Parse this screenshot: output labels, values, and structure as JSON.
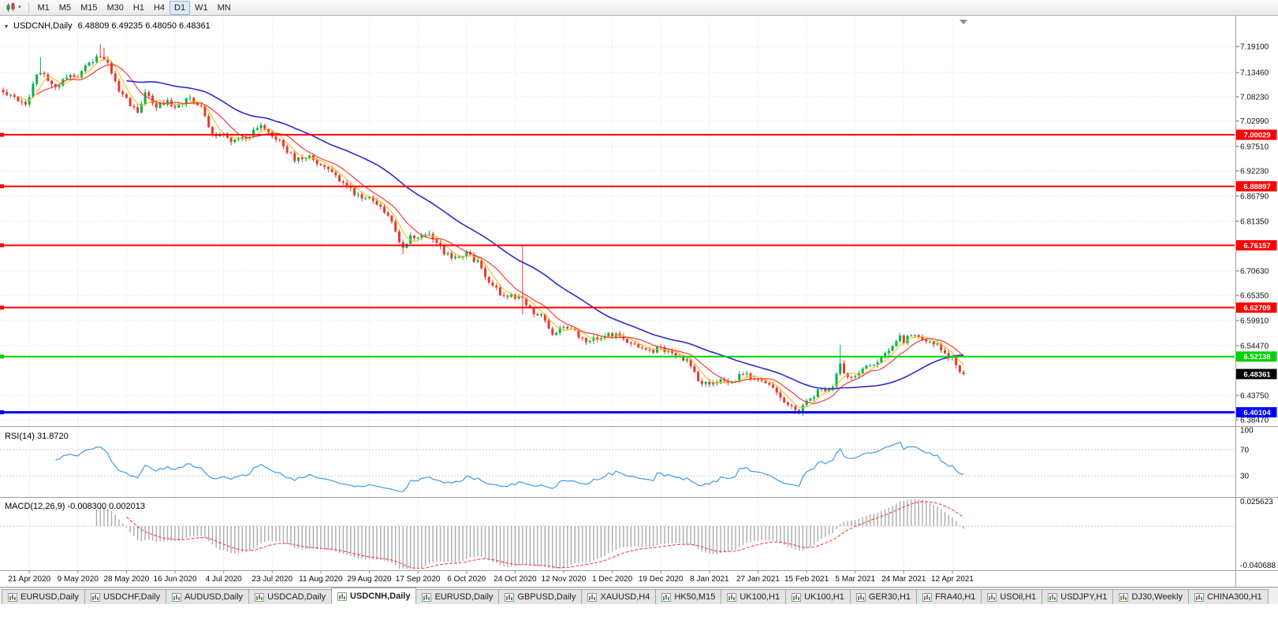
{
  "toolbar": {
    "timeframes": [
      "M1",
      "M5",
      "M15",
      "M30",
      "H1",
      "H4",
      "D1",
      "W1",
      "MN"
    ],
    "active_timeframe": "D1"
  },
  "header": {
    "symbol": "USDCNH,Daily",
    "ohlc": "6.48809 6.49235 6.48050 6.48361"
  },
  "chart_data": {
    "type": "candlestick",
    "symbol": "USDCNH",
    "timeframe": "Daily",
    "y_axis_labels": [
      "7.19100",
      "7.13460",
      "7.08230",
      "7.02990",
      "6.97510",
      "6.92230",
      "6.86790",
      "6.81350",
      "6.70630",
      "6.65350",
      "6.59910",
      "6.54470",
      "6.43750",
      "6.38470"
    ],
    "x_axis_labels": [
      "21 Apr 2020",
      "9 May 2020",
      "28 May 2020",
      "16 Jun 2020",
      "4 Jul 2020",
      "23 Jul 2020",
      "11 Aug 2020",
      "29 Aug 2020",
      "17 Sep 2020",
      "6 Oct 2020",
      "24 Oct 2020",
      "12 Nov 2020",
      "1 Dec 2020",
      "19 Dec 2020",
      "8 Jan 2021",
      "27 Jan 2021",
      "15 Feb 2021",
      "5 Mar 2021",
      "24 Mar 2021",
      "12 Apr 2021"
    ],
    "price_range": {
      "top": 7.2505,
      "bottom": 6.3729
    },
    "bars": 258,
    "ticks_first_bar": 7,
    "ticks_bar_step": 13,
    "close_anchors": [
      [
        0,
        7.095
      ],
      [
        6,
        7.065
      ],
      [
        9,
        7.13
      ],
      [
        10,
        7.14
      ],
      [
        13,
        7.105
      ],
      [
        17,
        7.12
      ],
      [
        20,
        7.13
      ],
      [
        23,
        7.15
      ],
      [
        26,
        7.175
      ],
      [
        28,
        7.16
      ],
      [
        30,
        7.115
      ],
      [
        32,
        7.085
      ],
      [
        33,
        7.075
      ],
      [
        36,
        7.045
      ],
      [
        38,
        7.09
      ],
      [
        41,
        7.06
      ],
      [
        44,
        7.07
      ],
      [
        46,
        7.065
      ],
      [
        50,
        7.075
      ],
      [
        53,
        7.06
      ],
      [
        55,
        7.015
      ],
      [
        58,
        6.995
      ],
      [
        59,
        7.0
      ],
      [
        62,
        6.985
      ],
      [
        65,
        6.995
      ],
      [
        69,
        7.015
      ],
      [
        72,
        7.0
      ],
      [
        75,
        6.975
      ],
      [
        78,
        6.945
      ],
      [
        81,
        6.955
      ],
      [
        85,
        6.935
      ],
      [
        89,
        6.915
      ],
      [
        92,
        6.885
      ],
      [
        95,
        6.87
      ],
      [
        98,
        6.86
      ],
      [
        101,
        6.845
      ],
      [
        104,
        6.815
      ],
      [
        107,
        6.755
      ],
      [
        109,
        6.785
      ],
      [
        111,
        6.775
      ],
      [
        114,
        6.79
      ],
      [
        117,
        6.755
      ],
      [
        120,
        6.73
      ],
      [
        124,
        6.745
      ],
      [
        127,
        6.725
      ],
      [
        130,
        6.685
      ],
      [
        133,
        6.66
      ],
      [
        136,
        6.655
      ],
      [
        139,
        6.645
      ],
      [
        141,
        6.625
      ],
      [
        145,
        6.6
      ],
      [
        147,
        6.565
      ],
      [
        150,
        6.59
      ],
      [
        153,
        6.575
      ],
      [
        156,
        6.555
      ],
      [
        159,
        6.565
      ],
      [
        163,
        6.57
      ],
      [
        166,
        6.555
      ],
      [
        169,
        6.545
      ],
      [
        172,
        6.53
      ],
      [
        176,
        6.54
      ],
      [
        179,
        6.525
      ],
      [
        183,
        6.51
      ],
      [
        186,
        6.47
      ],
      [
        189,
        6.46
      ],
      [
        192,
        6.475
      ],
      [
        195,
        6.465
      ],
      [
        198,
        6.485
      ],
      [
        202,
        6.475
      ],
      [
        205,
        6.455
      ],
      [
        208,
        6.435
      ],
      [
        211,
        6.415
      ],
      [
        213,
        6.405
      ],
      [
        215,
        6.42
      ],
      [
        218,
        6.445
      ],
      [
        222,
        6.46
      ],
      [
        224,
        6.5
      ],
      [
        226,
        6.475
      ],
      [
        228,
        6.48
      ],
      [
        231,
        6.5
      ],
      [
        234,
        6.515
      ],
      [
        237,
        6.54
      ],
      [
        240,
        6.565
      ],
      [
        241,
        6.555
      ],
      [
        244,
        6.57
      ],
      [
        247,
        6.555
      ],
      [
        250,
        6.545
      ],
      [
        252,
        6.525
      ],
      [
        254,
        6.52
      ],
      [
        255,
        6.5
      ],
      [
        257,
        6.48361
      ]
    ],
    "spikes": [
      {
        "i": 10,
        "high": 7.168
      },
      {
        "i": 26,
        "high": 7.196
      },
      {
        "i": 27,
        "high": 7.188
      },
      {
        "i": 107,
        "low": 6.742
      },
      {
        "i": 139,
        "high": 6.763,
        "low": 6.612
      },
      {
        "i": 224,
        "high": 6.547
      }
    ],
    "last_bar": {
      "open": 6.48809,
      "high": 6.49235,
      "low": 6.4805,
      "close": 6.48361
    },
    "hlines": [
      {
        "price": 7.00029,
        "label": "7.00029",
        "color": "#ff0000",
        "width": 2
      },
      {
        "price": 6.88897,
        "label": "6.88897",
        "color": "#ff0000",
        "width": 2
      },
      {
        "price": 6.76157,
        "label": "6.76157",
        "color": "#ff0000",
        "width": 2
      },
      {
        "price": 6.62709,
        "label": "6.62709",
        "color": "#ff0000",
        "width": 2
      },
      {
        "price": 6.52138,
        "label": "6.52138",
        "color": "#00d300",
        "width": 2
      },
      {
        "price": 6.40104,
        "label": "6.40104",
        "color": "#0000ff",
        "width": 3
      }
    ],
    "current_price": {
      "value": 6.48361,
      "label": "6.48361",
      "badge_color": "#000000"
    },
    "candle_up_color": "#00b14f",
    "candle_down_color": "#e8382f",
    "moving_averages": [
      {
        "period": 5,
        "color": "#efc010",
        "name": "ma-fast-yellow"
      },
      {
        "period": 10,
        "color": "#ff2a2a",
        "name": "ma-mid-red"
      },
      {
        "period": 34,
        "color": "#2a2ad4",
        "name": "ma-slow-blue"
      }
    ],
    "rsi": {
      "label": "RSI(14)",
      "value": "31.8720",
      "period": 14,
      "levels": [
        "100",
        "70",
        "30"
      ],
      "line_color": "#3c9be8"
    },
    "macd": {
      "label": "MACD(12,26,9)",
      "values": "-0.008300 0.002013",
      "scale_top": "0.025623",
      "scale_bottom": "-0.040688",
      "histogram_color": "#ababab",
      "signal_color": "#ff3030"
    }
  },
  "tabs": [
    {
      "label": "EURUSD,Daily",
      "active": false
    },
    {
      "label": "USDCHF,Daily",
      "active": false
    },
    {
      "label": "AUDUSD,Daily",
      "active": false
    },
    {
      "label": "USDCAD,Daily",
      "active": false
    },
    {
      "label": "USDCNH,Daily",
      "active": true
    },
    {
      "label": "EURUSD,Daily",
      "active": false
    },
    {
      "label": "GBPUSD,Daily",
      "active": false
    },
    {
      "label": "XAUUSD,H4",
      "active": false
    },
    {
      "label": "HK50,M15",
      "active": false
    },
    {
      "label": "UK100,H1",
      "active": false
    },
    {
      "label": "UK100,H1",
      "active": false
    },
    {
      "label": "GER30,H1",
      "active": false
    },
    {
      "label": "FRA40,H1",
      "active": false
    },
    {
      "label": "USOil,H1",
      "active": false
    },
    {
      "label": "USDJPY,H1",
      "active": false
    },
    {
      "label": "DJ30,Weekly",
      "active": false
    },
    {
      "label": "CHINA300,H1",
      "active": false
    }
  ]
}
